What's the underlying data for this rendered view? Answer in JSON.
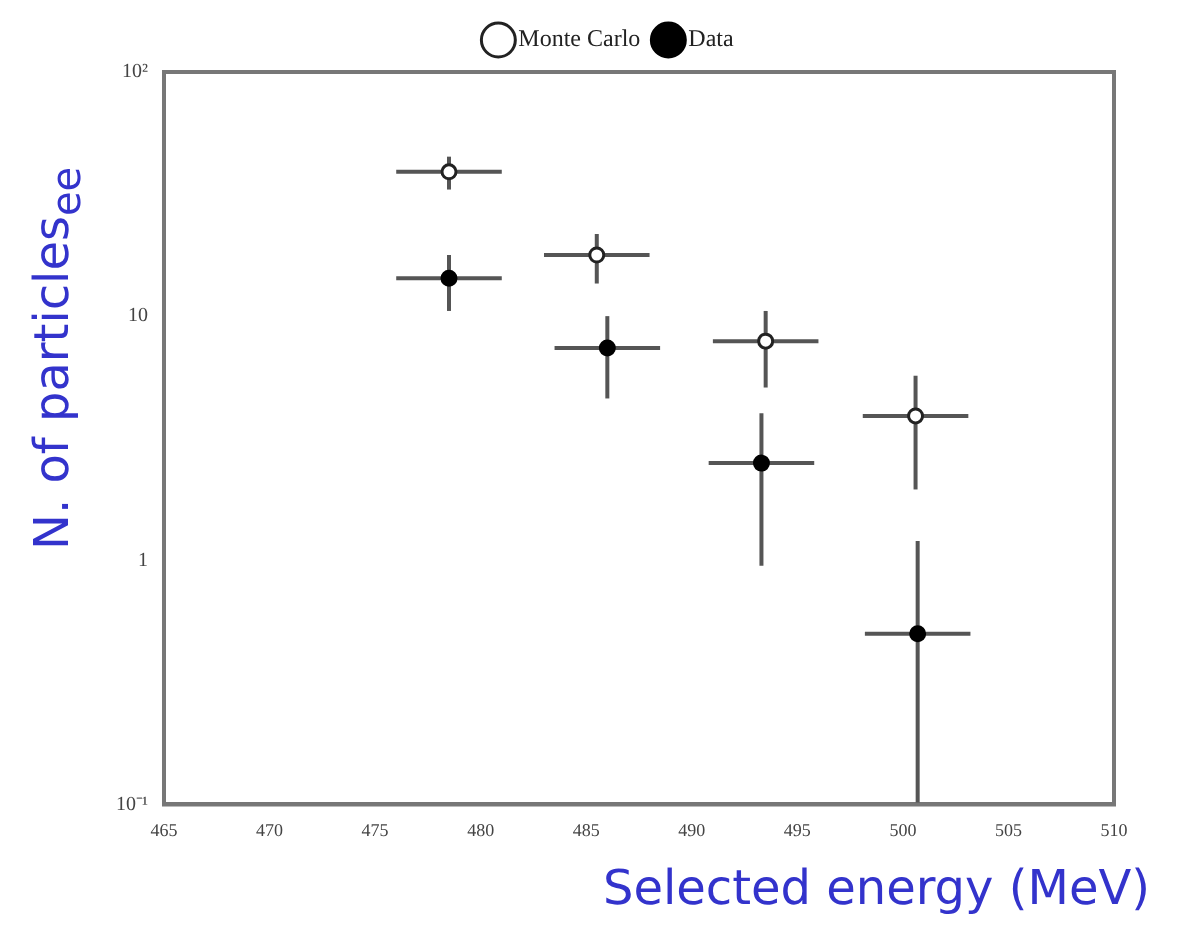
{
  "chart_data": {
    "type": "scatter",
    "xlabel": "Selected energy (MeV)",
    "ylabel": "N. of particles$_{ee}$",
    "log": "y",
    "xlim": [
      465,
      510
    ],
    "xticks": [
      465,
      470,
      475,
      480,
      485,
      490,
      495,
      500,
      505,
      510
    ],
    "ylim": [
      0.1,
      100
    ],
    "yticks": [
      {
        "value": 0.1,
        "label": "10⁻¹"
      },
      1,
      10,
      {
        "value": 100,
        "label": "10²"
      }
    ],
    "legend": "top",
    "marker": "circle",
    "series": [
      {
        "name": "Monte Carlo",
        "color": "#222222",
        "x": [
          478.5,
          485.5,
          493.5,
          500.6
        ],
        "values": [
          39,
          17.8,
          7.9,
          3.9
        ],
        "errors": [
          [
            33,
            45
          ],
          [
            13.6,
            21.7
          ],
          [
            5.1,
            10.5
          ],
          [
            1.95,
            5.7
          ]
        ],
        "xerrors": [
          2.5,
          2.5,
          2.5,
          2.5
        ]
      },
      {
        "name": "Data",
        "color": "#000000",
        "x": [
          478.5,
          486,
          493.3,
          500.7
        ],
        "values": [
          14.3,
          7.4,
          2.5,
          0.5
        ],
        "errors": [
          [
            10.5,
            17.8
          ],
          [
            4.6,
            10
          ],
          [
            0.95,
            4
          ],
          [
            0.1,
            1.2
          ]
        ],
        "xerrors": [
          2.5,
          2.5,
          2.5,
          2.5
        ]
      }
    ]
  }
}
